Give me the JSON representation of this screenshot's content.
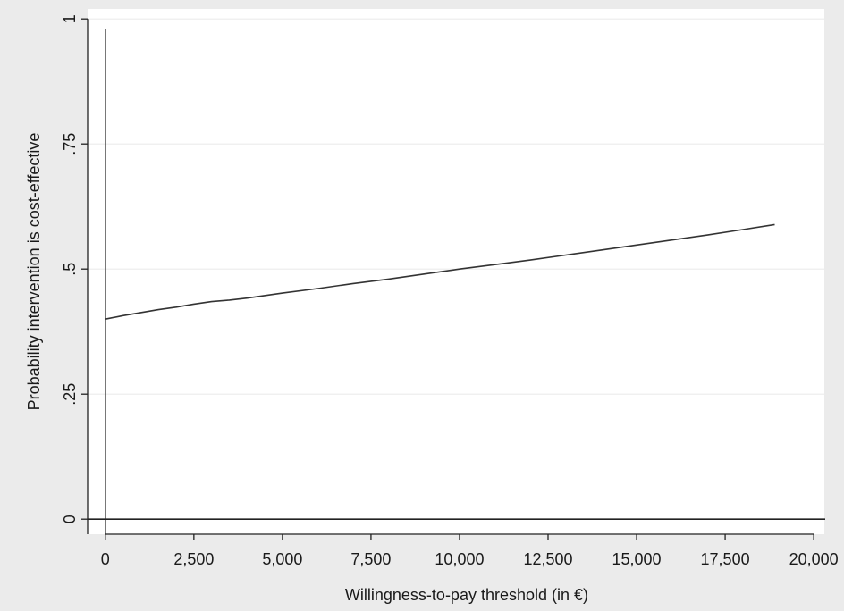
{
  "chart_data": {
    "type": "line",
    "title": "",
    "xlabel": "Willingness-to-pay threshold (in €)",
    "ylabel": "Probability intervention is cost-effective",
    "xlim": [
      -500,
      20300
    ],
    "ylim": [
      -0.03,
      1.02
    ],
    "x_ticks": [
      0,
      2500,
      5000,
      7500,
      10000,
      12500,
      15000,
      17500,
      20000
    ],
    "x_tick_labels": [
      "0",
      "2,500",
      "5,000",
      "7,500",
      "10,000",
      "12,500",
      "15,000",
      "17,500",
      "20,000"
    ],
    "y_ticks": [
      0,
      0.25,
      0.5,
      0.75,
      1
    ],
    "y_tick_labels": [
      "0",
      ".25",
      ".5",
      ".75",
      "1"
    ],
    "grid": "horizontal",
    "reference_lines": {
      "x": 0,
      "y": 0
    },
    "series": [
      {
        "x": [
          0,
          500,
          1000,
          1500,
          2000,
          2500,
          3000,
          3500,
          4000,
          5000,
          6000,
          7000,
          8000,
          9000,
          10000,
          11000,
          12000,
          13000,
          14000,
          15000,
          16000,
          17000,
          18000,
          18900
        ],
        "y": [
          0.4,
          0.407,
          0.413,
          0.419,
          0.424,
          0.43,
          0.435,
          0.438,
          0.442,
          0.452,
          0.461,
          0.471,
          0.48,
          0.49,
          0.5,
          0.509,
          0.518,
          0.528,
          0.538,
          0.548,
          0.558,
          0.568,
          0.579,
          0.589
        ]
      }
    ],
    "colors": {
      "background": "#ebebeb",
      "plot_area": "#ffffff",
      "line": "#333333",
      "gridline": "#ececec",
      "axis": "#222222"
    }
  }
}
